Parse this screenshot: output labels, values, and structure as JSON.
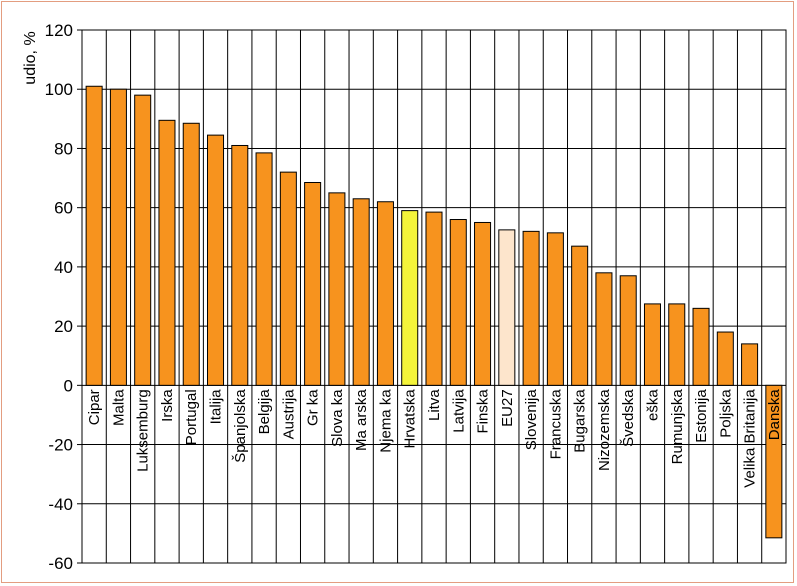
{
  "chart_data": {
    "type": "bar",
    "ylabel": "udio, %",
    "ylim": [
      -60,
      120
    ],
    "ytick_step": 20,
    "grid": true,
    "legend": "none",
    "categories": [
      "Cipar",
      "Malta",
      "Luksemburg",
      "Irska",
      "Portugal",
      "Italija",
      "Španjolska",
      "Belgija",
      "Austrija",
      "Gr ka",
      "Slova ka",
      "Ma arska",
      "Njema ka",
      "Hrvatska",
      "Litva",
      "Latvija",
      "Finska",
      "EU27",
      "Slovenija",
      "Francuska",
      "Bugarska",
      "Nizozemska",
      "Švedska",
      "eška",
      "Rumunjska",
      "Estonija",
      "Poljska",
      "Velika Britanija",
      "Danska"
    ],
    "values": [
      101,
      100,
      98,
      89.5,
      88.5,
      84.5,
      81,
      78.5,
      72,
      68.5,
      65,
      63,
      62,
      59,
      58.5,
      56,
      55,
      52.5,
      52,
      51.5,
      47,
      38,
      37,
      27.5,
      27.5,
      26,
      18,
      14,
      -51.5
    ],
    "highlight": {
      "Hrvatska": "#f4f43a",
      "EU27": "#fde5cc",
      "default": "#f7931e"
    },
    "label_colors": {
      "Danska": "#ffffff",
      "default": "#000000"
    }
  }
}
